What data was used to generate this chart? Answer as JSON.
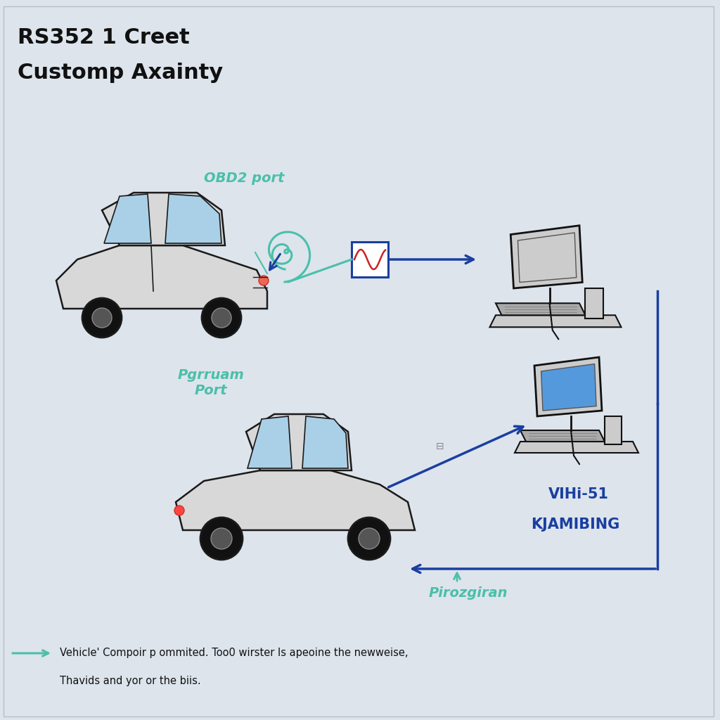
{
  "title_line1": "RS352 1 Creet",
  "title_line2": "Customp Axainty",
  "bg_color": "#dde4ec",
  "title_color": "#111111",
  "obd2_label": "OBD2 port",
  "obd2_label_color": "#4bbfaa",
  "program_port_label": "Pgrruam\nPort",
  "program_port_color": "#4bbfaa",
  "vh_label_line1": "VIHi-51",
  "vh_label_line2": "ΚJAMIBING",
  "vh_label_color": "#1a3fa0",
  "pirozgiran_label": "Pirozgiran",
  "pirozgiran_color": "#4bbfaa",
  "arrow_blue": "#1a3fa0",
  "arrow_green": "#4bbfaa",
  "legend_text_line1": "Vehicle' Compoir p ommited. Too0 wirster Is apeoine the newweise,",
  "legend_text_line2": "Thavids and yor or the biis.",
  "legend_arrow_color": "#4bbfaa",
  "box_border": "#1a3fa0",
  "box_fill": "#ffffff",
  "car_body": "#d8d8d8",
  "car_edge": "#1a1a1a",
  "car_window": "#aad0e8",
  "computer_body": "#cccccc",
  "computer_edge": "#111111",
  "screen1_color": "#cccccc",
  "screen2_color": "#5599dd"
}
